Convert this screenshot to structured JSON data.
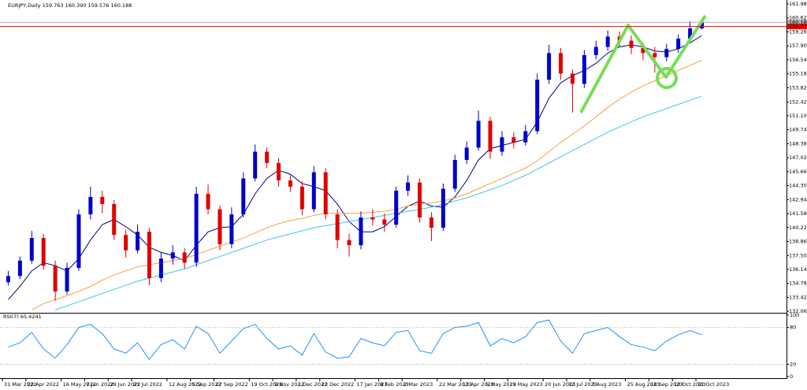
{
  "chart_data": {
    "type": "candlestick",
    "title": "EURJPY,Daily  159.763 160.390 159.576 160.188",
    "categories": [
      "31 Mar 2022",
      null,
      "22 Apr 2022",
      null,
      null,
      "16 May 2022",
      null,
      "7 Jun 2022",
      null,
      "29 Jun 2022",
      null,
      "21 Jul 2022",
      null,
      null,
      "12 Aug 2022",
      null,
      "5 Sep 2022",
      null,
      "27 Sep 2022",
      null,
      null,
      "19 Oct 2022",
      null,
      "9 Nov 2022",
      null,
      "1 Dec 2022",
      null,
      "23 Dec 2022",
      null,
      null,
      "17 Jan 2023",
      null,
      "8 Feb 2023",
      null,
      "2 Mar 2023",
      null,
      null,
      "22 Mar 2023",
      null,
      "13 Apr 2023",
      null,
      "5 May 2023",
      null,
      "29 May 2023",
      null,
      null,
      "20 Jun 2023",
      null,
      "12 Jul 2023",
      null,
      "3 Aug 2023",
      null,
      null,
      "25 Aug 2023",
      null,
      "18 Sep 2023",
      null,
      "10 Oct 2023",
      null,
      "31 Oct 2023"
    ],
    "open": [
      134.9,
      135.5,
      137.0,
      139.2,
      136.5,
      134.0,
      136.3,
      141.5,
      143.2,
      142.5,
      139.5,
      138.0,
      139.8,
      135.3,
      137.2,
      137.8,
      136.8,
      143.5,
      142.0,
      138.6,
      141.5,
      145.0,
      147.6,
      146.5,
      144.8,
      144.2,
      142.0,
      145.6,
      141.5,
      139.0,
      138.5,
      141.2,
      141.0,
      140.5,
      143.8,
      144.6,
      141.2,
      140.2,
      144.0,
      146.8,
      148.0,
      150.6,
      147.6,
      149.0,
      148.5,
      149.6,
      154.6,
      157.2,
      155.2,
      154.2,
      157.0,
      157.8,
      158.8,
      158.4,
      157.7,
      157.2,
      156.8,
      157.6,
      158.6,
      159.6
    ],
    "high": [
      136.0,
      137.4,
      139.9,
      139.6,
      137.0,
      136.8,
      142.0,
      144.2,
      143.8,
      142.9,
      140.0,
      140.5,
      140.2,
      137.8,
      138.5,
      138.2,
      144.2,
      144.4,
      142.4,
      142.2,
      145.6,
      148.3,
      148.0,
      147.0,
      145.3,
      144.7,
      146.2,
      146.0,
      142.0,
      139.6,
      141.8,
      142.0,
      141.6,
      144.2,
      145.3,
      145.0,
      141.7,
      144.5,
      147.3,
      148.6,
      151.6,
      151.0,
      149.6,
      149.5,
      150.2,
      155.2,
      158.0,
      157.7,
      155.6,
      157.5,
      158.4,
      159.4,
      159.3,
      158.9,
      158.2,
      157.8,
      158.1,
      159.0,
      160.3,
      160.4
    ],
    "low": [
      134.6,
      135.2,
      136.7,
      136.1,
      133.1,
      133.7,
      136.0,
      141.0,
      141.6,
      139.0,
      137.3,
      137.7,
      134.6,
      134.9,
      136.6,
      136.2,
      136.4,
      141.5,
      138.0,
      138.2,
      141.2,
      144.7,
      146.0,
      144.2,
      143.7,
      141.4,
      141.7,
      141.0,
      138.2,
      137.4,
      138.1,
      140.4,
      139.8,
      140.2,
      143.3,
      140.7,
      138.9,
      139.9,
      143.7,
      146.4,
      147.7,
      146.9,
      147.2,
      147.9,
      148.2,
      149.3,
      154.2,
      154.6,
      151.4,
      153.8,
      156.6,
      157.4,
      157.8,
      157.1,
      156.5,
      155.3,
      156.4,
      157.2,
      158.2,
      159.5
    ],
    "close": [
      135.5,
      137.0,
      139.2,
      136.5,
      134.0,
      136.3,
      141.5,
      143.2,
      142.5,
      139.5,
      138.0,
      139.8,
      135.3,
      137.2,
      137.8,
      136.8,
      143.5,
      142.0,
      138.6,
      141.5,
      145.0,
      147.6,
      146.5,
      144.8,
      144.2,
      142.0,
      145.6,
      141.5,
      139.0,
      138.5,
      141.2,
      141.0,
      140.5,
      143.8,
      144.6,
      141.2,
      140.2,
      144.0,
      146.8,
      148.0,
      150.6,
      147.6,
      149.0,
      148.5,
      149.6,
      154.6,
      157.2,
      155.2,
      154.2,
      157.0,
      157.8,
      158.8,
      158.4,
      157.7,
      157.2,
      156.8,
      157.6,
      158.6,
      159.6,
      160.2
    ],
    "up_color": "#0000c8",
    "down_color": "#e00000",
    "series": [
      {
        "color": "#000080",
        "values": [
          133.2,
          134.5,
          136.0,
          136.8,
          136.5,
          136.0,
          137.2,
          139.0,
          140.5,
          141.0,
          140.3,
          139.5,
          138.3,
          137.8,
          137.5,
          137.0,
          138.5,
          139.8,
          140.2,
          140.3,
          141.5,
          143.5,
          145.0,
          145.8,
          145.4,
          144.5,
          144.2,
          143.8,
          142.5,
          140.8,
          139.8,
          139.8,
          140.3,
          141.3,
          142.3,
          142.8,
          142.3,
          142.2,
          143.2,
          144.8,
          146.8,
          147.9,
          148.2,
          148.5,
          148.8,
          150.5,
          152.8,
          154.3,
          155.0,
          155.5,
          156.2,
          157.2,
          157.8,
          158.0,
          157.8,
          157.4,
          157.3,
          157.6,
          158.2,
          158.9
        ]
      },
      {
        "color": "#f5a040",
        "values": [
          null,
          null,
          132.2,
          132.8,
          133.2,
          133.6,
          134.0,
          134.5,
          135.1,
          135.6,
          136.0,
          136.4,
          136.6,
          136.8,
          137.0,
          137.2,
          137.6,
          138.0,
          138.4,
          138.8,
          139.2,
          139.7,
          140.2,
          140.6,
          140.9,
          141.1,
          141.4,
          141.6,
          141.6,
          141.6,
          141.6,
          141.7,
          141.8,
          142.0,
          142.3,
          142.5,
          142.6,
          142.8,
          143.1,
          143.5,
          144.0,
          144.5,
          145.0,
          145.5,
          146.0,
          146.7,
          147.6,
          148.5,
          149.3,
          150.1,
          151.0,
          151.9,
          152.7,
          153.4,
          154.0,
          154.5,
          155.0,
          155.5,
          156.0,
          156.5
        ]
      },
      {
        "color": "#40c4f0",
        "values": [
          null,
          null,
          null,
          null,
          132.2,
          132.6,
          133.0,
          133.4,
          133.8,
          134.2,
          134.6,
          135.0,
          135.3,
          135.6,
          135.9,
          136.2,
          136.6,
          137.0,
          137.4,
          137.8,
          138.2,
          138.6,
          139.0,
          139.3,
          139.6,
          139.9,
          140.2,
          140.4,
          140.6,
          140.8,
          141.0,
          141.2,
          141.4,
          141.6,
          141.8,
          142.0,
          142.2,
          142.5,
          142.8,
          143.1,
          143.5,
          143.9,
          144.3,
          144.8,
          145.3,
          145.9,
          146.5,
          147.1,
          147.7,
          148.3,
          148.9,
          149.5,
          150.0,
          150.5,
          151.0,
          151.4,
          151.8,
          152.2,
          152.6,
          153.0
        ]
      }
    ],
    "ylim": [
      132.0,
      162.36
    ],
    "yticks": [
      {
        "value": 161.98,
        "label": "161.980"
      },
      {
        "value": 160.62,
        "label": "160.620"
      },
      {
        "value": 159.26,
        "label": "159.260"
      },
      {
        "value": 157.9,
        "label": "157.900"
      },
      {
        "value": 156.54,
        "label": "156.540"
      },
      {
        "value": 155.18,
        "label": "155.180"
      },
      {
        "value": 153.82,
        "label": "153.820"
      },
      {
        "value": 152.42,
        "label": "152.420"
      },
      {
        "value": 151.1,
        "label": "151.100"
      },
      {
        "value": 149.74,
        "label": "149.740"
      },
      {
        "value": 148.38,
        "label": "148.380"
      },
      {
        "value": 147.02,
        "label": "147.020"
      },
      {
        "value": 145.66,
        "label": "145.660"
      },
      {
        "value": 144.3,
        "label": "144.300"
      },
      {
        "value": 142.94,
        "label": "142.940"
      },
      {
        "value": 141.58,
        "label": "141.580"
      },
      {
        "value": 140.22,
        "label": "140.220"
      },
      {
        "value": 138.86,
        "label": "138.860"
      },
      {
        "value": 137.5,
        "label": "137.500"
      },
      {
        "value": 136.14,
        "label": "136.140"
      },
      {
        "value": 134.78,
        "label": "134.780"
      },
      {
        "value": 133.42,
        "label": "133.420"
      },
      {
        "value": 132.06,
        "label": "132.060"
      }
    ],
    "price_lines": [
      {
        "value": 160.188,
        "color": "#b0b0b0"
      },
      {
        "value": 159.779,
        "color": "#ff0000"
      }
    ],
    "rsi": {
      "title": "RSI(7) 65.4241",
      "color": "#1e90ff",
      "values": [
        48,
        55,
        72,
        45,
        30,
        52,
        80,
        85,
        70,
        45,
        38,
        55,
        28,
        52,
        60,
        45,
        82,
        70,
        38,
        58,
        78,
        85,
        62,
        45,
        50,
        35,
        70,
        40,
        30,
        32,
        62,
        55,
        50,
        72,
        75,
        42,
        38,
        70,
        80,
        82,
        88,
        50,
        62,
        55,
        65,
        88,
        92,
        58,
        38,
        70,
        75,
        80,
        65,
        52,
        48,
        42,
        58,
        68,
        75,
        68
      ],
      "ylim": [
        0,
        100
      ],
      "yticks": [
        100,
        80,
        20,
        0
      ],
      "levels": [
        80,
        20
      ]
    }
  }
}
